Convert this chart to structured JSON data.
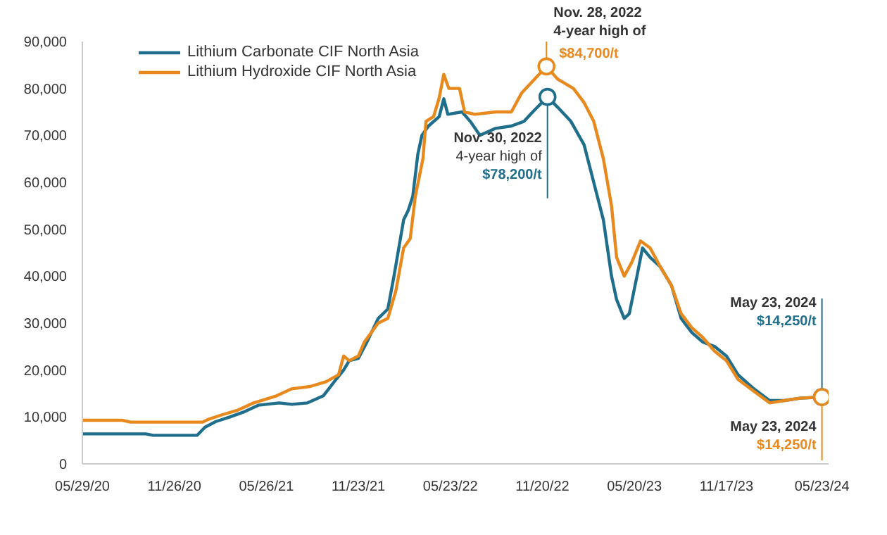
{
  "chart_data": {
    "type": "line",
    "xlim": [
      "2020-05-29",
      "2024-06-05"
    ],
    "ylim": [
      0,
      90000
    ],
    "xticks": [
      {
        "value": "2020-05-29",
        "label": "05/29/20"
      },
      {
        "value": "2020-11-26",
        "label": "11/26/20"
      },
      {
        "value": "2021-05-26",
        "label": "05/26/21"
      },
      {
        "value": "2021-11-23",
        "label": "11/23/21"
      },
      {
        "value": "2022-05-23",
        "label": "05/23/22"
      },
      {
        "value": "2022-11-20",
        "label": "11/20/22"
      },
      {
        "value": "2023-05-20",
        "label": "05/20/23"
      },
      {
        "value": "2023-11-17",
        "label": "11/17/23"
      },
      {
        "value": "2024-05-23",
        "label": "05/23/24"
      }
    ],
    "yticks": [
      0,
      {
        "value": 10000,
        "label": "10,000"
      },
      {
        "value": 20000,
        "label": "20,000"
      },
      {
        "value": 30000,
        "label": "30,000"
      },
      {
        "value": 40000,
        "label": "40,000"
      },
      {
        "value": 50000,
        "label": "50,000"
      },
      {
        "value": 60000,
        "label": "60,000"
      },
      {
        "value": 70000,
        "label": "70,000"
      },
      {
        "value": 80000,
        "label": "80,000"
      },
      {
        "value": 90000,
        "label": "90,000"
      }
    ],
    "grid": false,
    "legend": "top left",
    "marker": "none",
    "line_style": "solid",
    "series": [
      {
        "name": "Lithium Carbonate CIF North Asia",
        "color": "#1f6e8c",
        "x": [
          "2020-05-29",
          "2020-10-01",
          "2020-10-15",
          "2021-01-10",
          "2021-01-25",
          "2021-02-15",
          "2021-03-15",
          "2021-04-10",
          "2021-05-10",
          "2021-06-20",
          "2021-07-15",
          "2021-08-15",
          "2021-09-15",
          "2021-10-10",
          "2021-10-25",
          "2021-11-05",
          "2021-11-23",
          "2021-12-10",
          "2022-01-01",
          "2022-01-20",
          "2022-02-01",
          "2022-02-20",
          "2022-03-01",
          "2022-03-10",
          "2022-03-20",
          "2022-03-28",
          "2022-04-10",
          "2022-05-01",
          "2022-05-10",
          "2022-05-18",
          "2022-06-15",
          "2022-07-01",
          "2022-07-20",
          "2022-08-20",
          "2022-09-20",
          "2022-10-15",
          "2022-11-01",
          "2022-11-30",
          "2022-12-20",
          "2023-01-15",
          "2023-02-10",
          "2023-03-01",
          "2023-03-20",
          "2023-04-05",
          "2023-04-15",
          "2023-04-30",
          "2023-05-10",
          "2023-05-25",
          "2023-06-05",
          "2023-06-20",
          "2023-07-10",
          "2023-08-01",
          "2023-08-20",
          "2023-09-10",
          "2023-10-01",
          "2023-10-25",
          "2023-11-17",
          "2023-12-10",
          "2024-01-10",
          "2024-02-10",
          "2024-03-10",
          "2024-04-10",
          "2024-05-23"
        ],
        "values": [
          6400,
          6400,
          6100,
          6100,
          7800,
          9000,
          10000,
          11000,
          12500,
          13000,
          12700,
          13000,
          14500,
          18000,
          20000,
          22000,
          22500,
          26000,
          31000,
          33000,
          40000,
          52000,
          54000,
          57000,
          66000,
          70000,
          72000,
          74000,
          77800,
          74500,
          75000,
          73000,
          70000,
          71500,
          72000,
          73000,
          75000,
          78200,
          76000,
          73000,
          68000,
          60000,
          52000,
          40000,
          35000,
          31000,
          32000,
          40000,
          46000,
          44000,
          42000,
          38000,
          31000,
          28000,
          26000,
          25000,
          23000,
          19000,
          16000,
          13500,
          13500,
          14000,
          14250
        ]
      },
      {
        "name": "Lithium Hydroxide CIF North Asia",
        "color": "#e8891e",
        "x": [
          "2020-05-29",
          "2020-08-15",
          "2020-09-01",
          "2021-01-20",
          "2021-02-01",
          "2021-03-01",
          "2021-04-01",
          "2021-05-01",
          "2021-06-15",
          "2021-07-15",
          "2021-08-20",
          "2021-09-20",
          "2021-10-15",
          "2021-10-25",
          "2021-11-05",
          "2021-11-23",
          "2021-12-05",
          "2022-01-01",
          "2022-01-20",
          "2022-02-05",
          "2022-02-20",
          "2022-03-05",
          "2022-03-15",
          "2022-03-30",
          "2022-04-05",
          "2022-04-20",
          "2022-05-01",
          "2022-05-10",
          "2022-05-20",
          "2022-06-10",
          "2022-06-20",
          "2022-07-10",
          "2022-08-20",
          "2022-09-20",
          "2022-10-10",
          "2022-11-28",
          "2022-12-20",
          "2023-01-20",
          "2023-02-10",
          "2023-03-01",
          "2023-03-20",
          "2023-04-05",
          "2023-04-15",
          "2023-04-30",
          "2023-05-15",
          "2023-06-01",
          "2023-06-20",
          "2023-07-10",
          "2023-08-01",
          "2023-08-20",
          "2023-09-10",
          "2023-10-01",
          "2023-10-25",
          "2023-11-17",
          "2023-12-10",
          "2024-01-10",
          "2024-02-10",
          "2024-03-10",
          "2024-04-10",
          "2024-05-23"
        ],
        "values": [
          9300,
          9300,
          8900,
          8900,
          9500,
          10500,
          11500,
          13000,
          14500,
          16000,
          16500,
          17500,
          19000,
          23000,
          22000,
          23000,
          26000,
          30000,
          31000,
          37000,
          46000,
          48000,
          57000,
          65000,
          73000,
          74000,
          78000,
          83000,
          80000,
          80000,
          75000,
          74500,
          75000,
          75000,
          79000,
          84700,
          82000,
          80000,
          77000,
          73000,
          65000,
          55000,
          44000,
          40000,
          43000,
          47500,
          46000,
          42000,
          38000,
          32000,
          29000,
          27000,
          24000,
          22000,
          18000,
          15500,
          13000,
          13500,
          14000,
          14250
        ]
      }
    ],
    "annotations": [
      {
        "text": "Nov. 28, 2022\n4-year high of\n$84,700/t",
        "x": "2022-11-28",
        "y": 84700
      },
      {
        "text": "Nov. 30, 2022\n4-year high of\n$78,200/t",
        "x": "2022-11-30",
        "y": 78200
      },
      {
        "text": "May 23, 2024\n$14,250/t",
        "x": "2024-05-23",
        "y": 14250
      },
      {
        "text": "May 23, 2024\n$14,250/t",
        "x": "2024-05-23",
        "y": 14250
      }
    ]
  }
}
